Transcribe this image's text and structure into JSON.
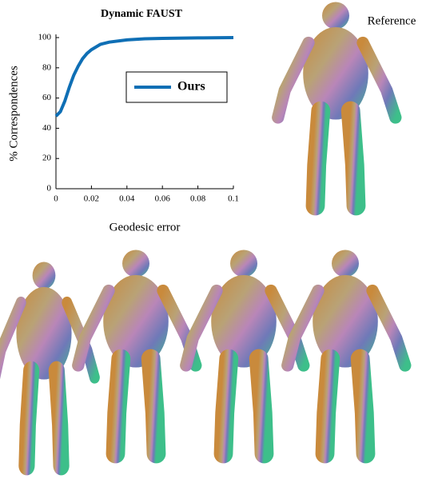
{
  "chart_data": {
    "type": "line",
    "title": "Dynamic FAUST",
    "x_label": "Geodesic error",
    "y_label": "% Correspondences",
    "x": [
      0,
      0.0025,
      0.005,
      0.0075,
      0.01,
      0.0125,
      0.015,
      0.0175,
      0.02,
      0.025,
      0.03,
      0.04,
      0.05,
      0.06,
      0.08,
      0.1
    ],
    "series": [
      {
        "name": "Ours",
        "color": "#0f6fb5",
        "values": [
          48,
          51,
          58,
          67,
          75,
          81,
          86,
          89.5,
          92,
          95.5,
          97,
          98.5,
          99.2,
          99.5,
          99.8,
          100
        ]
      }
    ],
    "xlim": [
      0,
      0.1
    ],
    "xticks": [
      0,
      0.02,
      0.04,
      0.06,
      0.08,
      0.1
    ],
    "ylim": [
      0,
      100
    ],
    "yticks": [
      0,
      20,
      40,
      60,
      80,
      100
    ],
    "legend": "right"
  },
  "figure": {
    "reference_label": "Reference"
  }
}
